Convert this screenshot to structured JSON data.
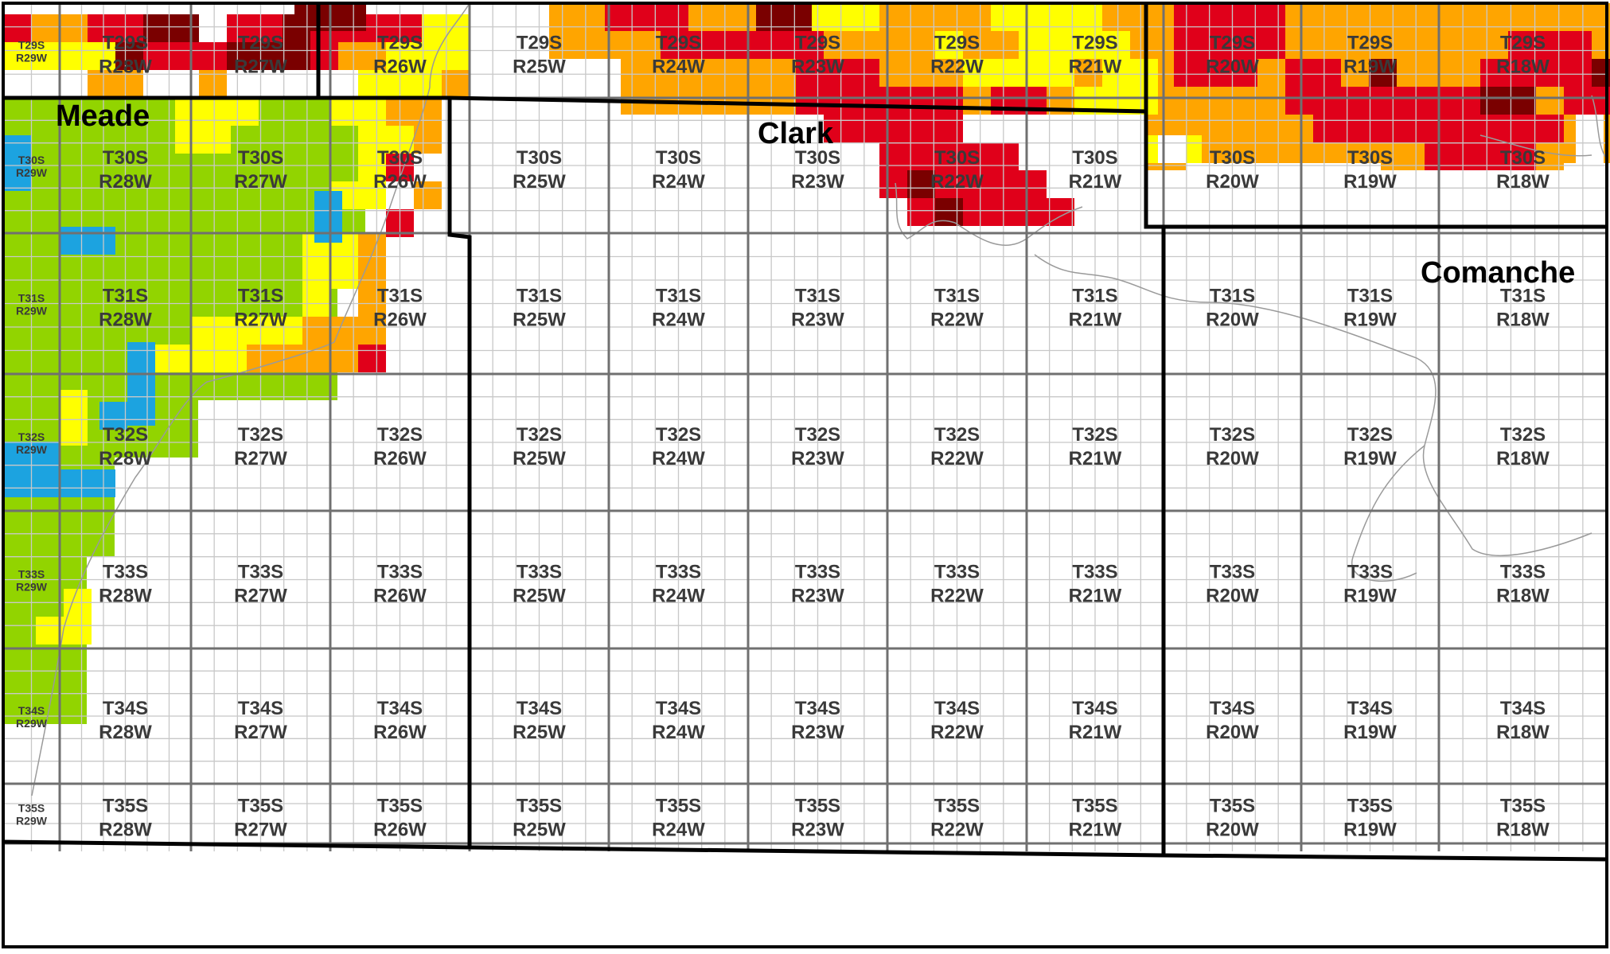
{
  "map": {
    "counties": [
      "Meade",
      "Clark",
      "Comanche"
    ],
    "range_labels": [
      "R29W",
      "R28W",
      "R27W",
      "R26W",
      "R25W",
      "R24W",
      "R23W",
      "R22W",
      "R21W",
      "R20W",
      "R19W",
      "R18W"
    ],
    "township_labels": [
      "T29S",
      "T30S",
      "T31S",
      "T32S",
      "T33S",
      "T34S",
      "T35S"
    ],
    "legend_colors": {
      "dark_red": "#7a0000",
      "red": "#e0001a",
      "orange": "#ffa500",
      "yellow": "#ffff00",
      "green": "#92d400",
      "blue": "#1ca3e0"
    },
    "grid_colors": {
      "section_line": "#c8c8c8",
      "township_line": "#707070",
      "county_line": "#000000",
      "stream_line": "#9a9a9a"
    }
  }
}
